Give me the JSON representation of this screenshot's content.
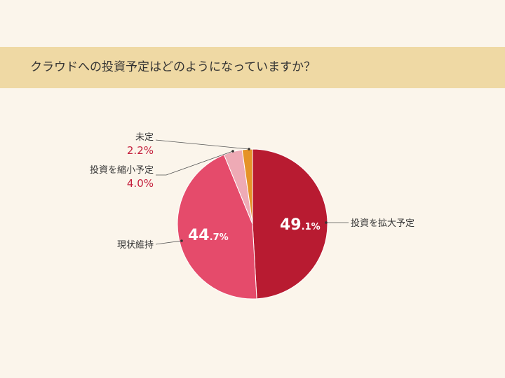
{
  "question_title": "クラウドへの投資予定はどのようになっていますか？",
  "colors": {
    "background": "#fbf5eb",
    "banner": "#efd9a4",
    "percent_label": "#c41f3c",
    "leader_line": "#555555"
  },
  "chart_data": {
    "type": "pie",
    "title": "",
    "start_angle_deg": 0,
    "direction": "clockwise",
    "slices": [
      {
        "label": "投資を拡大予定",
        "value": 49.1,
        "int_part": "49",
        "dec_part": ".1%",
        "color": "#b81b31"
      },
      {
        "label": "現状維持",
        "value": 44.7,
        "int_part": "44",
        "dec_part": ".7%",
        "color": "#e54b6b"
      },
      {
        "label": "投資を縮小予定",
        "value": 4.0,
        "pct_text": "4.0%",
        "color": "#eeaab5"
      },
      {
        "label": "未定",
        "value": 2.2,
        "pct_text": "2.2%",
        "color": "#e59327"
      }
    ]
  }
}
